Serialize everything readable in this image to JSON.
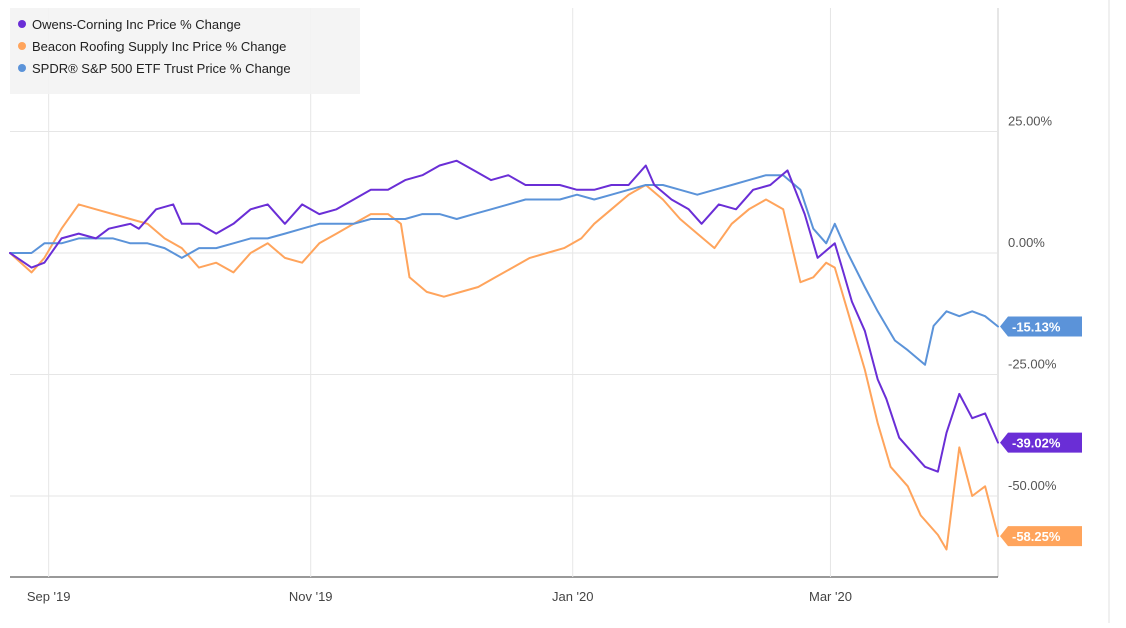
{
  "chart_data": {
    "type": "line",
    "title": "",
    "xlabel": "",
    "ylabel": "",
    "x_ticks": [
      "Sep '19",
      "Nov '19",
      "Jan '20",
      "Mar '20"
    ],
    "y_ticks": [
      "25.00%",
      "0.00%",
      "-25.00%",
      "-50.00%"
    ],
    "ylim": [
      -67,
      50
    ],
    "legend_position": "top-left",
    "grid": true,
    "series": [
      {
        "name": "Owens-Corning Inc Price % Change",
        "color": "#6a2ed6",
        "end_label": "-39.02%",
        "points": [
          [
            "2019-08-23",
            0
          ],
          [
            "2019-08-28",
            -3
          ],
          [
            "2019-08-31",
            -2
          ],
          [
            "2019-09-04",
            3
          ],
          [
            "2019-09-08",
            4
          ],
          [
            "2019-09-12",
            3
          ],
          [
            "2019-09-15",
            5
          ],
          [
            "2019-09-20",
            6
          ],
          [
            "2019-09-22",
            5
          ],
          [
            "2019-09-26",
            9
          ],
          [
            "2019-09-30",
            10
          ],
          [
            "2019-10-02",
            6
          ],
          [
            "2019-10-06",
            6
          ],
          [
            "2019-10-10",
            4
          ],
          [
            "2019-10-14",
            6
          ],
          [
            "2019-10-18",
            9
          ],
          [
            "2019-10-22",
            10
          ],
          [
            "2019-10-26",
            6
          ],
          [
            "2019-10-30",
            10
          ],
          [
            "2019-11-03",
            8
          ],
          [
            "2019-11-07",
            9
          ],
          [
            "2019-11-11",
            11
          ],
          [
            "2019-11-15",
            13
          ],
          [
            "2019-11-19",
            13
          ],
          [
            "2019-11-23",
            15
          ],
          [
            "2019-11-27",
            16
          ],
          [
            "2019-12-01",
            18
          ],
          [
            "2019-12-05",
            19
          ],
          [
            "2019-12-09",
            17
          ],
          [
            "2019-12-13",
            15
          ],
          [
            "2019-12-17",
            16
          ],
          [
            "2019-12-21",
            14
          ],
          [
            "2019-12-25",
            14
          ],
          [
            "2019-12-29",
            14
          ],
          [
            "2020-01-02",
            13
          ],
          [
            "2020-01-06",
            13
          ],
          [
            "2020-01-10",
            14
          ],
          [
            "2020-01-14",
            14
          ],
          [
            "2020-01-18",
            18
          ],
          [
            "2020-01-20",
            14
          ],
          [
            "2020-01-24",
            11
          ],
          [
            "2020-01-28",
            9
          ],
          [
            "2020-01-31",
            6
          ],
          [
            "2020-02-04",
            10
          ],
          [
            "2020-02-08",
            9
          ],
          [
            "2020-02-12",
            13
          ],
          [
            "2020-02-16",
            14
          ],
          [
            "2020-02-20",
            17
          ],
          [
            "2020-02-24",
            8
          ],
          [
            "2020-02-27",
            -1
          ],
          [
            "2020-03-02",
            2
          ],
          [
            "2020-03-04",
            -4
          ],
          [
            "2020-03-06",
            -10
          ],
          [
            "2020-03-09",
            -16
          ],
          [
            "2020-03-12",
            -26
          ],
          [
            "2020-03-14",
            -30
          ],
          [
            "2020-03-17",
            -38
          ],
          [
            "2020-03-20",
            -41
          ],
          [
            "2020-03-23",
            -44
          ],
          [
            "2020-03-26",
            -45
          ],
          [
            "2020-03-28",
            -37
          ],
          [
            "2020-03-31",
            -29
          ],
          [
            "2020-04-03",
            -34
          ],
          [
            "2020-04-06",
            -33
          ],
          [
            "2020-04-09",
            -39.02
          ]
        ]
      },
      {
        "name": "Beacon Roofing Supply Inc Price % Change",
        "color": "#ffa45c",
        "end_label": "-58.25%",
        "points": [
          [
            "2019-08-23",
            0
          ],
          [
            "2019-08-28",
            -4
          ],
          [
            "2019-08-31",
            -1
          ],
          [
            "2019-09-04",
            5
          ],
          [
            "2019-09-08",
            10
          ],
          [
            "2019-09-12",
            9
          ],
          [
            "2019-09-16",
            8
          ],
          [
            "2019-09-20",
            7
          ],
          [
            "2019-09-24",
            6
          ],
          [
            "2019-09-28",
            3
          ],
          [
            "2019-10-02",
            1
          ],
          [
            "2019-10-06",
            -3
          ],
          [
            "2019-10-10",
            -2
          ],
          [
            "2019-10-14",
            -4
          ],
          [
            "2019-10-18",
            0
          ],
          [
            "2019-10-22",
            2
          ],
          [
            "2019-10-26",
            -1
          ],
          [
            "2019-10-30",
            -2
          ],
          [
            "2019-11-03",
            2
          ],
          [
            "2019-11-07",
            4
          ],
          [
            "2019-11-11",
            6
          ],
          [
            "2019-11-15",
            8
          ],
          [
            "2019-11-19",
            8
          ],
          [
            "2019-11-22",
            6
          ],
          [
            "2019-11-24",
            -5
          ],
          [
            "2019-11-28",
            -8
          ],
          [
            "2019-12-02",
            -9
          ],
          [
            "2019-12-06",
            -8
          ],
          [
            "2019-12-10",
            -7
          ],
          [
            "2019-12-14",
            -5
          ],
          [
            "2019-12-18",
            -3
          ],
          [
            "2019-12-22",
            -1
          ],
          [
            "2019-12-26",
            0
          ],
          [
            "2019-12-30",
            1
          ],
          [
            "2020-01-03",
            3
          ],
          [
            "2020-01-06",
            6
          ],
          [
            "2020-01-10",
            9
          ],
          [
            "2020-01-14",
            12
          ],
          [
            "2020-01-18",
            14
          ],
          [
            "2020-01-22",
            11
          ],
          [
            "2020-01-26",
            7
          ],
          [
            "2020-01-30",
            4
          ],
          [
            "2020-02-03",
            1
          ],
          [
            "2020-02-07",
            6
          ],
          [
            "2020-02-11",
            9
          ],
          [
            "2020-02-15",
            11
          ],
          [
            "2020-02-19",
            9
          ],
          [
            "2020-02-23",
            -6
          ],
          [
            "2020-02-26",
            -5
          ],
          [
            "2020-02-29",
            -2
          ],
          [
            "2020-03-02",
            -3
          ],
          [
            "2020-03-05",
            -12
          ],
          [
            "2020-03-09",
            -24
          ],
          [
            "2020-03-12",
            -35
          ],
          [
            "2020-03-15",
            -44
          ],
          [
            "2020-03-19",
            -48
          ],
          [
            "2020-03-22",
            -54
          ],
          [
            "2020-03-26",
            -58
          ],
          [
            "2020-03-28",
            -61
          ],
          [
            "2020-03-31",
            -40
          ],
          [
            "2020-04-03",
            -50
          ],
          [
            "2020-04-06",
            -48
          ],
          [
            "2020-04-09",
            -58.25
          ]
        ]
      },
      {
        "name": "SPDR® S&P 500 ETF Trust Price % Change",
        "color": "#5b93d9",
        "end_label": "-15.13%",
        "points": [
          [
            "2019-08-23",
            0
          ],
          [
            "2019-08-28",
            0
          ],
          [
            "2019-08-31",
            2
          ],
          [
            "2019-09-04",
            2
          ],
          [
            "2019-09-08",
            3
          ],
          [
            "2019-09-12",
            3
          ],
          [
            "2019-09-16",
            3
          ],
          [
            "2019-09-20",
            2
          ],
          [
            "2019-09-24",
            2
          ],
          [
            "2019-09-28",
            1
          ],
          [
            "2019-10-02",
            -1
          ],
          [
            "2019-10-06",
            1
          ],
          [
            "2019-10-10",
            1
          ],
          [
            "2019-10-14",
            2
          ],
          [
            "2019-10-18",
            3
          ],
          [
            "2019-10-22",
            3
          ],
          [
            "2019-10-26",
            4
          ],
          [
            "2019-10-30",
            5
          ],
          [
            "2019-11-03",
            6
          ],
          [
            "2019-11-07",
            6
          ],
          [
            "2019-11-11",
            6
          ],
          [
            "2019-11-15",
            7
          ],
          [
            "2019-11-19",
            7
          ],
          [
            "2019-11-23",
            7
          ],
          [
            "2019-11-27",
            8
          ],
          [
            "2019-12-01",
            8
          ],
          [
            "2019-12-05",
            7
          ],
          [
            "2019-12-09",
            8
          ],
          [
            "2019-12-13",
            9
          ],
          [
            "2019-12-17",
            10
          ],
          [
            "2019-12-21",
            11
          ],
          [
            "2019-12-25",
            11
          ],
          [
            "2019-12-29",
            11
          ],
          [
            "2020-01-02",
            12
          ],
          [
            "2020-01-06",
            11
          ],
          [
            "2020-01-10",
            12
          ],
          [
            "2020-01-14",
            13
          ],
          [
            "2020-01-18",
            14
          ],
          [
            "2020-01-22",
            14
          ],
          [
            "2020-01-26",
            13
          ],
          [
            "2020-01-30",
            12
          ],
          [
            "2020-02-03",
            13
          ],
          [
            "2020-02-07",
            14
          ],
          [
            "2020-02-11",
            15
          ],
          [
            "2020-02-15",
            16
          ],
          [
            "2020-02-19",
            16
          ],
          [
            "2020-02-23",
            13
          ],
          [
            "2020-02-26",
            5
          ],
          [
            "2020-02-29",
            2
          ],
          [
            "2020-03-02",
            6
          ],
          [
            "2020-03-05",
            0
          ],
          [
            "2020-03-09",
            -7
          ],
          [
            "2020-03-12",
            -12
          ],
          [
            "2020-03-16",
            -18
          ],
          [
            "2020-03-19",
            -20
          ],
          [
            "2020-03-23",
            -23
          ],
          [
            "2020-03-25",
            -15
          ],
          [
            "2020-03-28",
            -12
          ],
          [
            "2020-03-31",
            -13
          ],
          [
            "2020-04-03",
            -12
          ],
          [
            "2020-04-06",
            -13
          ],
          [
            "2020-04-09",
            -15.13
          ]
        ]
      }
    ]
  }
}
